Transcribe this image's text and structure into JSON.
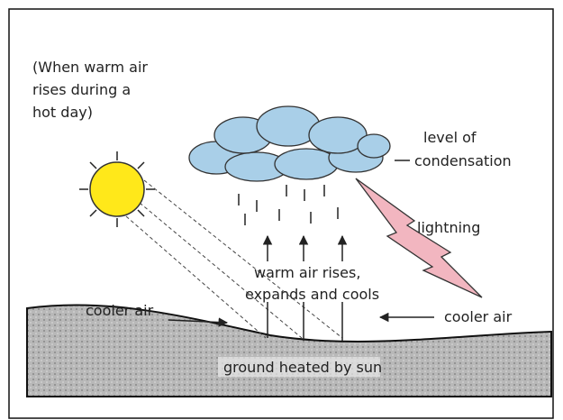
{
  "caption": [
    "(When warm air",
    "rises during a",
    "hot day)"
  ],
  "condensation": [
    "level of",
    "condensation"
  ],
  "lightning": "lightning",
  "warm_air": [
    "warm air rises,",
    "expands and cools"
  ],
  "cooler_air_left": "cooler air",
  "cooler_air_right": "cooler air",
  "ground": "ground heated by sun"
}
